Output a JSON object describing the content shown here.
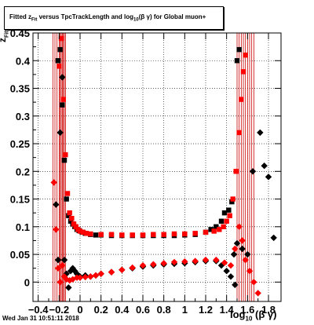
{
  "chart_data": {
    "type": "scatter",
    "title": "Fitted z_{Fit} versus TpcTrackLength and log_{10}(βγ) for Global muon+",
    "title_parts": {
      "pre": "Fitted  z",
      "sub": "Fit",
      "mid": "  versus TpcTrackLength and log",
      "sub2": "10",
      "post": "(β γ) for Global muon+"
    },
    "xlabel": "log10 (β γ)",
    "xlabel_parts": {
      "pre": "log",
      "sub": "10",
      "post": " (β γ)"
    },
    "ylabel": "zFit",
    "ylabel_parts": {
      "pre": "z",
      "sub": "Fit"
    },
    "xlim": [
      -0.45,
      1.92
    ],
    "ylim": [
      -0.035,
      0.45
    ],
    "x_ticks": [
      -0.4,
      -0.2,
      0,
      0.2,
      0.4,
      0.6,
      0.8,
      1,
      1.2,
      1.4,
      1.6,
      1.8
    ],
    "x_tick_labels": [
      "−0.4",
      "−0.2",
      "0",
      "0.2",
      "0.4",
      "0.6",
      "0.8",
      "1",
      "1.2",
      "1.4",
      "1.6",
      "1.8"
    ],
    "y_ticks": [
      0,
      0.05,
      0.1,
      0.15,
      0.2,
      0.25,
      0.3,
      0.35,
      0.4,
      0.45
    ],
    "y_tick_labels": [
      "0",
      "0.05",
      "0.1",
      "0.15",
      "0.2",
      "0.25",
      "0.3",
      "0.35",
      "0.4",
      "0.45"
    ],
    "grid": true,
    "legend": "none",
    "series": [
      {
        "color": "#000000",
        "marker": "square",
        "points": [
          [
            -0.21,
            0.4
          ],
          [
            -0.19,
            0.42
          ],
          [
            -0.17,
            0.32
          ],
          [
            -0.15,
            0.22
          ],
          [
            -0.13,
            0.15
          ],
          [
            -0.11,
            0.12
          ],
          [
            -0.09,
            0.11
          ],
          [
            -0.07,
            0.105
          ],
          [
            -0.05,
            0.1
          ],
          [
            -0.03,
            0.095
          ],
          [
            -0.01,
            0.093
          ],
          [
            0.02,
            0.09
          ],
          [
            0.05,
            0.088
          ],
          [
            0.1,
            0.086
          ],
          [
            0.15,
            0.085
          ],
          [
            0.2,
            0.085
          ],
          [
            0.3,
            0.084
          ],
          [
            0.4,
            0.084
          ],
          [
            0.5,
            0.084
          ],
          [
            0.6,
            0.084
          ],
          [
            0.7,
            0.084
          ],
          [
            0.8,
            0.084
          ],
          [
            0.9,
            0.084
          ],
          [
            1.0,
            0.085
          ],
          [
            1.1,
            0.086
          ],
          [
            1.2,
            0.09
          ],
          [
            1.25,
            0.095
          ],
          [
            1.3,
            0.1
          ],
          [
            1.35,
            0.11
          ],
          [
            1.38,
            0.125
          ],
          [
            1.42,
            0.13
          ],
          [
            1.45,
            0.145
          ],
          [
            1.5,
            0.4
          ],
          [
            1.52,
            0.42
          ]
        ]
      },
      {
        "color": "#ff0000",
        "marker": "square",
        "points": [
          [
            -0.2,
            0.39
          ],
          [
            -0.18,
            0.44
          ],
          [
            -0.16,
            0.33
          ],
          [
            -0.14,
            0.23
          ],
          [
            -0.12,
            0.16
          ],
          [
            -0.1,
            0.125
          ],
          [
            -0.08,
            0.115
          ],
          [
            -0.06,
            0.105
          ],
          [
            -0.04,
            0.1
          ],
          [
            -0.02,
            0.095
          ],
          [
            0.0,
            0.092
          ],
          [
            0.03,
            0.09
          ],
          [
            0.06,
            0.088
          ],
          [
            0.1,
            0.087
          ],
          [
            0.2,
            0.086
          ],
          [
            0.3,
            0.086
          ],
          [
            0.4,
            0.085
          ],
          [
            0.5,
            0.085
          ],
          [
            0.6,
            0.085
          ],
          [
            0.7,
            0.086
          ],
          [
            0.8,
            0.086
          ],
          [
            0.9,
            0.087
          ],
          [
            1.0,
            0.087
          ],
          [
            1.1,
            0.088
          ],
          [
            1.2,
            0.09
          ],
          [
            1.28,
            0.092
          ],
          [
            1.33,
            0.095
          ],
          [
            1.37,
            0.1
          ],
          [
            1.4,
            0.11
          ],
          [
            1.43,
            0.12
          ],
          [
            1.46,
            0.15
          ],
          [
            1.49,
            0.2
          ],
          [
            1.52,
            0.27
          ],
          [
            1.54,
            0.33
          ],
          [
            1.56,
            0.38
          ],
          [
            1.58,
            0.41
          ]
        ]
      },
      {
        "color": "#000000",
        "marker": "diamond",
        "points": [
          [
            -0.23,
            0.14
          ],
          [
            -0.21,
            0.04
          ],
          [
            -0.19,
            0.27
          ],
          [
            -0.17,
            0.37
          ],
          [
            -0.15,
            0.04
          ],
          [
            -0.13,
            0.015
          ],
          [
            -0.11,
            -0.01
          ],
          [
            -0.09,
            0.02
          ],
          [
            -0.07,
            0.025
          ],
          [
            -0.05,
            0.02
          ],
          [
            -0.03,
            0.015
          ],
          [
            0.0,
            0.01
          ],
          [
            0.05,
            0.012
          ],
          [
            0.1,
            0.01
          ],
          [
            0.15,
            0.012
          ],
          [
            0.2,
            0.015
          ],
          [
            0.3,
            0.018
          ],
          [
            0.4,
            0.022
          ],
          [
            0.5,
            0.025
          ],
          [
            0.6,
            0.028
          ],
          [
            0.7,
            0.03
          ],
          [
            0.8,
            0.032
          ],
          [
            0.9,
            0.033
          ],
          [
            1.0,
            0.034
          ],
          [
            1.1,
            0.036
          ],
          [
            1.2,
            0.038
          ],
          [
            1.3,
            0.038
          ],
          [
            1.35,
            0.03
          ],
          [
            1.4,
            0.02
          ],
          [
            1.44,
            0.01
          ],
          [
            1.47,
            0.05
          ],
          [
            1.5,
            0.07
          ],
          [
            1.55,
            0.06
          ],
          [
            1.6,
            0.05
          ],
          [
            1.65,
            0.2
          ],
          [
            1.72,
            0.27
          ],
          [
            1.76,
            0.21
          ],
          [
            1.8,
            0.19
          ],
          [
            1.85,
            0.08
          ],
          [
            1.48,
            -0.005
          ]
        ]
      },
      {
        "color": "#ff0000",
        "marker": "diamond",
        "points": [
          [
            -0.25,
            0.18
          ],
          [
            -0.23,
            0.095
          ],
          [
            -0.21,
            0.025
          ],
          [
            -0.19,
            0.0
          ],
          [
            -0.17,
            0.03
          ],
          [
            -0.15,
            0.01
          ],
          [
            -0.13,
            0.005
          ],
          [
            -0.1,
            0.003
          ],
          [
            -0.07,
            0.005
          ],
          [
            -0.03,
            0.008
          ],
          [
            0.0,
            0.008
          ],
          [
            0.05,
            0.009
          ],
          [
            0.1,
            0.01
          ],
          [
            0.15,
            0.012
          ],
          [
            0.2,
            0.015
          ],
          [
            0.3,
            0.018
          ],
          [
            0.4,
            0.022
          ],
          [
            0.5,
            0.026
          ],
          [
            0.6,
            0.03
          ],
          [
            0.7,
            0.032
          ],
          [
            0.8,
            0.034
          ],
          [
            0.9,
            0.036
          ],
          [
            1.0,
            0.037
          ],
          [
            1.1,
            0.038
          ],
          [
            1.2,
            0.04
          ],
          [
            1.3,
            0.04
          ],
          [
            1.38,
            0.035
          ],
          [
            1.44,
            0.03
          ],
          [
            1.48,
            0.06
          ],
          [
            1.52,
            0.1
          ],
          [
            1.55,
            0.075
          ],
          [
            1.58,
            0.04
          ],
          [
            1.62,
            0.02
          ],
          [
            1.66,
            0.0
          ],
          [
            1.7,
            -0.02
          ]
        ]
      }
    ],
    "error_bars_x": [
      -0.26,
      -0.24,
      -0.22,
      -0.2,
      -0.19,
      -0.18,
      -0.17,
      -0.16,
      -0.15,
      -0.14,
      1.5,
      1.52,
      1.54,
      1.56,
      1.58,
      1.6,
      1.62,
      1.64,
      1.66
    ]
  },
  "footer": {
    "timestamp": "Wed Jan 31 10:51:11 2018"
  }
}
